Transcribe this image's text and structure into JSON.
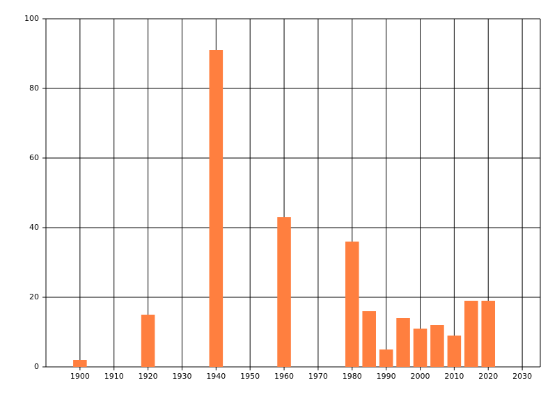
{
  "chart_data": {
    "type": "bar",
    "x": [
      1900,
      1920,
      1940,
      1960,
      1980,
      1985,
      1990,
      1995,
      2000,
      2005,
      2010,
      2015,
      2020
    ],
    "values": [
      2,
      15,
      91,
      43,
      36,
      16,
      5,
      14,
      11,
      12,
      9,
      19,
      19
    ],
    "color": "#ff7f3f",
    "xlim": [
      1890,
      2035.3
    ],
    "xticks": [
      1900,
      1910,
      1920,
      1930,
      1940,
      1950,
      1960,
      1970,
      1980,
      1990,
      2000,
      2010,
      2020,
      2030
    ],
    "ylim": [
      0,
      100
    ],
    "yticks": [
      0,
      20,
      40,
      60,
      80,
      100
    ],
    "grid": true
  }
}
